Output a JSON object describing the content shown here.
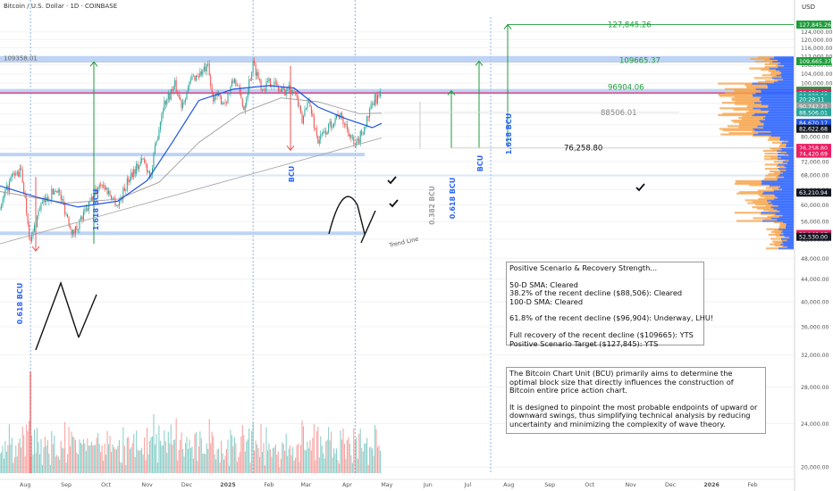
{
  "header": {
    "symbol": "Bitcoin / U.S. Dollar · 1D · COINBASE",
    "currency": "USD"
  },
  "colors": {
    "up": "#26a69a",
    "down": "#ef5350",
    "sma50": "#1e53e5",
    "sma100": "#9e9e9e",
    "zone": "#b3cdf5",
    "measure": "#1e9d3b",
    "magenta": "#e91e63",
    "bcu": "#2962ff"
  },
  "chart_data": {
    "type": "candlestick",
    "y_axis": {
      "scale": "log",
      "range": [
        19500,
        132000
      ],
      "ticks": [
        "124,000.00",
        "120,000.00",
        "116,000.00",
        "112,000.00",
        "108,000.00",
        "104,000.00",
        "100,000.00",
        "96,000.00",
        "92,000.00",
        "88,000.00",
        "84,000.00",
        "80,000.00",
        "76,000.00",
        "72,000.00",
        "68,000.00",
        "64,000.00",
        "60,000.00",
        "56,000.00",
        "52,000.00",
        "48,000.00",
        "44,000.00",
        "40,000.00",
        "36,000.00",
        "32,000.00",
        "28,000.00",
        "24,000.00",
        "20,000.00"
      ]
    },
    "x_axis": {
      "range": [
        "2024-07-13",
        "2026-03-04"
      ],
      "ticks": [
        {
          "label": "Aug",
          "date": "2024-08-01"
        },
        {
          "label": "Sep",
          "date": "2024-09-01"
        },
        {
          "label": "Oct",
          "date": "2024-10-01"
        },
        {
          "label": "Nov",
          "date": "2024-11-01"
        },
        {
          "label": "Dec",
          "date": "2024-12-01"
        },
        {
          "label": "2025",
          "date": "2025-01-01"
        },
        {
          "label": "Feb",
          "date": "2025-02-01"
        },
        {
          "label": "Mar",
          "date": "2025-03-01"
        },
        {
          "label": "Apr",
          "date": "2025-04-01"
        },
        {
          "label": "May",
          "date": "2025-05-01"
        },
        {
          "label": "Jun",
          "date": "2025-06-01"
        },
        {
          "label": "Jul",
          "date": "2025-07-01"
        },
        {
          "label": "Aug",
          "date": "2025-08-01"
        },
        {
          "label": "Sep",
          "date": "2025-09-01"
        },
        {
          "label": "Oct",
          "date": "2025-10-01"
        },
        {
          "label": "Nov",
          "date": "2025-11-01"
        },
        {
          "label": "Dec",
          "date": "2025-12-01"
        },
        {
          "label": "2026",
          "date": "2026-01-01"
        },
        {
          "label": "Feb",
          "date": "2026-02-01"
        }
      ]
    },
    "price_path": [
      [
        "2024-07-13",
        59000
      ],
      [
        "2024-07-22",
        67500
      ],
      [
        "2024-07-29",
        69000
      ],
      [
        "2024-08-05",
        51000
      ],
      [
        "2024-08-12",
        59500
      ],
      [
        "2024-08-25",
        64500
      ],
      [
        "2024-09-06",
        53200
      ],
      [
        "2024-09-16",
        58500
      ],
      [
        "2024-09-27",
        66000
      ],
      [
        "2024-10-10",
        60000
      ],
      [
        "2024-10-20",
        68500
      ],
      [
        "2024-10-29",
        72500
      ],
      [
        "2024-11-04",
        67800
      ],
      [
        "2024-11-13",
        91000
      ],
      [
        "2024-11-22",
        99000
      ],
      [
        "2024-11-27",
        91500
      ],
      [
        "2024-12-05",
        102000
      ],
      [
        "2024-12-17",
        106500
      ],
      [
        "2024-12-20",
        95000
      ],
      [
        "2024-12-30",
        92500
      ],
      [
        "2025-01-06",
        102000
      ],
      [
        "2025-01-13",
        90000
      ],
      [
        "2025-01-20",
        108500
      ],
      [
        "2025-01-27",
        98000
      ],
      [
        "2025-02-03",
        101000
      ],
      [
        "2025-02-10",
        96500
      ],
      [
        "2025-02-20",
        98500
      ],
      [
        "2025-02-26",
        84500
      ],
      [
        "2025-03-02",
        94000
      ],
      [
        "2025-03-10",
        78500
      ],
      [
        "2025-03-18",
        83000
      ],
      [
        "2025-03-25",
        88000
      ],
      [
        "2025-04-01",
        83000
      ],
      [
        "2025-04-07",
        76000
      ],
      [
        "2025-04-15",
        84500
      ],
      [
        "2025-04-22",
        93500
      ],
      [
        "2025-04-27",
        95000
      ]
    ],
    "sma_50_days": [
      [
        "2024-07-13",
        65000
      ],
      [
        "2024-08-10",
        62000
      ],
      [
        "2024-09-10",
        59500
      ],
      [
        "2024-10-10",
        61000
      ],
      [
        "2024-11-01",
        66500
      ],
      [
        "2024-11-20",
        78000
      ],
      [
        "2024-12-10",
        93000
      ],
      [
        "2025-01-05",
        97500
      ],
      [
        "2025-02-01",
        99000
      ],
      [
        "2025-02-20",
        98000
      ],
      [
        "2025-03-10",
        90500
      ],
      [
        "2025-04-01",
        86000
      ],
      [
        "2025-04-20",
        83000
      ],
      [
        "2025-04-27",
        84500
      ]
    ],
    "sma_100_days": [
      [
        "2024-07-13",
        63500
      ],
      [
        "2024-09-01",
        60500
      ],
      [
        "2024-10-10",
        61500
      ],
      [
        "2024-11-10",
        66000
      ],
      [
        "2024-12-10",
        78000
      ],
      [
        "2025-01-10",
        88000
      ],
      [
        "2025-02-10",
        94000
      ],
      [
        "2025-03-10",
        92500
      ],
      [
        "2025-04-10",
        88000
      ],
      [
        "2025-04-27",
        88200
      ]
    ],
    "volume_range": [
      0,
      100
    ],
    "horizontal_levels": [
      {
        "label": "127,845.26",
        "value": 127845.26,
        "color": "#1e9d3b"
      },
      {
        "label": "109665.37",
        "value": 109665.37,
        "color": "#1e9d3b"
      },
      {
        "label": "96904.06",
        "value": 96904.06,
        "color": "#1e9d3b"
      },
      {
        "label": "88506.01",
        "value": 88506.01,
        "color": "#9e9e9e"
      },
      {
        "label": "76,258.80",
        "value": 76258.8,
        "color": "#111111"
      },
      {
        "label": "109358.01",
        "value": 109358.01,
        "color": "#555555"
      }
    ],
    "axis_tags": [
      {
        "label": "127,845.26",
        "value": 127845.26,
        "bg": "#1e9d3b"
      },
      {
        "label": "109,665.37",
        "value": 109665.37,
        "bg": "#1e9d3b"
      },
      {
        "label": "96,904.06",
        "value": 96904.06,
        "bg": "#1e9d3b"
      },
      {
        "label": "96,004.49",
        "value": 96004.49,
        "bg": "#e91e63"
      },
      {
        "label": "94,832.56",
        "value": 94832.56,
        "bg": "#26a69a"
      },
      {
        "label": "20:29:11",
        "value": 93500,
        "bg": "#26a69a"
      },
      {
        "label": "90,742.21",
        "value": 90742.21,
        "bg": "#9e9e9e"
      },
      {
        "label": "88,506.01",
        "value": 88506.01,
        "bg": "#26a69a"
      },
      {
        "label": "84,670.17",
        "value": 84670.17,
        "bg": "#1e53e5"
      },
      {
        "label": "82,622.68",
        "value": 82622.68,
        "bg": "#131722"
      },
      {
        "label": "76,258.80",
        "value": 76258.8,
        "bg": "#e91e63"
      },
      {
        "label": "74,420.69",
        "value": 74420.69,
        "bg": "#e91e63"
      },
      {
        "label": "63,210.94",
        "value": 63210.94,
        "bg": "#131722"
      },
      {
        "label": "53,148.17",
        "value": 53148.17,
        "bg": "#e91e63"
      },
      {
        "label": "52,530.00",
        "value": 52530.0,
        "bg": "#131722"
      }
    ],
    "annotations": [
      "1.618 BCU",
      "0.618 BCU",
      "BCU",
      "0.618 BCU",
      "BCU",
      "1.618 BCU",
      "0.382 BCU",
      "Trend Line"
    ]
  },
  "labels": {
    "level_127": "127,845.26",
    "level_109": "109665.37",
    "level_96": "96904.06",
    "level_88": "88506.01",
    "level_76": "76,258.80",
    "level_109358": "109358.01",
    "bcu_1618_left": "1.618 BCU",
    "bcu_0618_left": "0.618 BCU",
    "bcu_mid": "BCU",
    "bcu_0382": "0.382 BCU",
    "bcu_0618_right": "0.618 BCU",
    "bcu_right": "BCU",
    "bcu_1618_right": "1.618 BCU",
    "trend_line": "Trend Line"
  },
  "note1": {
    "title": "Positive Scenario & Recovery Strength...",
    "lines": [
      "50-D SMA: Cleared",
      "38.2% of the recent decline ($88,506): Cleared",
      "100-D SMA: Cleared",
      "61.8% of the recent decline ($96,904): Underway, LHU!",
      "Full recovery of the recent decline ($109665): YTS",
      "Positive Scenario Target ($127,845): YTS"
    ]
  },
  "note2": {
    "lines": [
      "The Bitcoin Chart Unit (BCU) primarily aims to determine the",
      "optimal block size that directly influences the construction of",
      "Bitcoin entire price action chart.",
      "It is designed to pinpoint the most probable endpoints of upward or",
      "downward swings, thus simplifying technical analysis by reducing",
      "uncertainty and minimizing the complexity of wave theory."
    ]
  }
}
